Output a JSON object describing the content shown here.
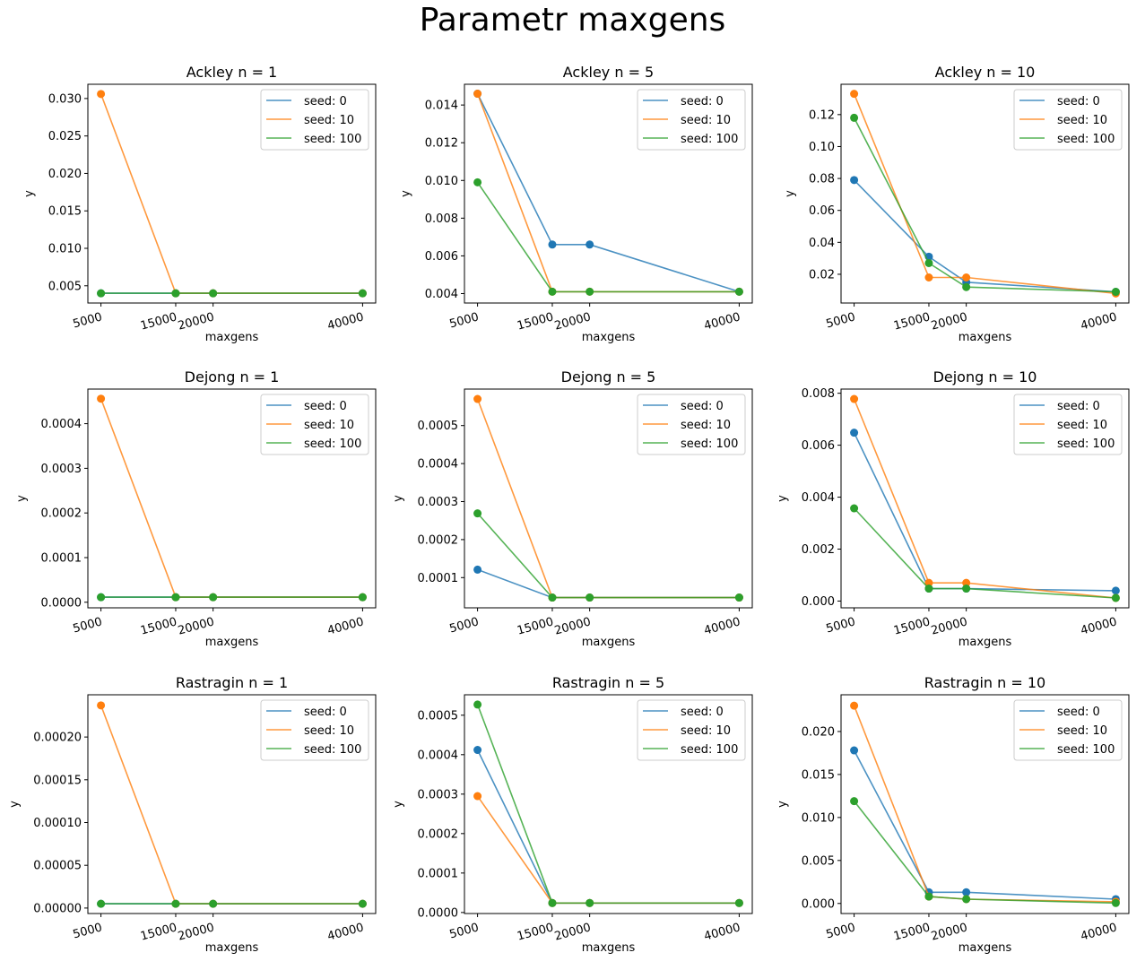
{
  "suptitle": "Parametr maxgens",
  "colors": {
    "seed_0": "#1f77b4",
    "seed_10": "#ff7f0e",
    "seed_100": "#2ca02c",
    "axes": "#000000",
    "legend_border": "#cccccc"
  },
  "chart_data": [
    {
      "type": "line",
      "title": "Ackley n = 1",
      "xlabel": "maxgens",
      "ylabel": "y",
      "legend": "top-right",
      "grid": false,
      "x": [
        5000,
        15000,
        20000,
        40000
      ],
      "yticks": [
        "0.005",
        "0.010",
        "0.015",
        "0.020",
        "0.025",
        "0.030"
      ],
      "ytick_values": [
        0.005,
        0.01,
        0.015,
        0.02,
        0.025,
        0.03
      ],
      "ylim": [
        0.0027,
        0.0319
      ],
      "series": [
        {
          "name": "seed: 0",
          "values": [
            0.004,
            0.004,
            0.004,
            0.004
          ]
        },
        {
          "name": "seed: 10",
          "values": [
            0.0306,
            0.004,
            0.004,
            0.004
          ]
        },
        {
          "name": "seed: 100",
          "values": [
            0.004,
            0.004,
            0.004,
            0.004
          ]
        }
      ]
    },
    {
      "type": "line",
      "title": "Ackley n = 5",
      "xlabel": "maxgens",
      "ylabel": "y",
      "legend": "top-right",
      "grid": false,
      "x": [
        5000,
        15000,
        20000,
        40000
      ],
      "yticks": [
        "0.004",
        "0.006",
        "0.008",
        "0.010",
        "0.012",
        "0.014"
      ],
      "ytick_values": [
        0.004,
        0.006,
        0.008,
        0.01,
        0.012,
        0.014
      ],
      "ylim": [
        0.0035,
        0.0151
      ],
      "series": [
        {
          "name": "seed: 0",
          "values": [
            0.0146,
            0.0066,
            0.0066,
            0.0041
          ]
        },
        {
          "name": "seed: 10",
          "values": [
            0.0146,
            0.0041,
            0.0041,
            0.0041
          ]
        },
        {
          "name": "seed: 100",
          "values": [
            0.0099,
            0.0041,
            0.0041,
            0.0041
          ]
        }
      ]
    },
    {
      "type": "line",
      "title": "Ackley n = 10",
      "xlabel": "maxgens",
      "ylabel": "y",
      "legend": "top-right",
      "grid": false,
      "x": [
        5000,
        15000,
        20000,
        40000
      ],
      "yticks": [
        "0.02",
        "0.04",
        "0.06",
        "0.08",
        "0.10",
        "0.12"
      ],
      "ytick_values": [
        0.02,
        0.04,
        0.06,
        0.08,
        0.1,
        0.12
      ],
      "ylim": [
        0.002,
        0.139
      ],
      "series": [
        {
          "name": "seed: 0",
          "values": [
            0.079,
            0.031,
            0.015,
            0.009
          ]
        },
        {
          "name": "seed: 10",
          "values": [
            0.133,
            0.018,
            0.018,
            0.008
          ]
        },
        {
          "name": "seed: 100",
          "values": [
            0.118,
            0.027,
            0.012,
            0.009
          ]
        }
      ]
    },
    {
      "type": "line",
      "title": "Dejong n = 1",
      "xlabel": "maxgens",
      "ylabel": "y",
      "legend": "top-right",
      "grid": false,
      "x": [
        5000,
        15000,
        20000,
        40000
      ],
      "yticks": [
        "0.0000",
        "0.0001",
        "0.0002",
        "0.0003",
        "0.0004"
      ],
      "ytick_values": [
        0.0,
        0.0001,
        0.0002,
        0.0003,
        0.0004
      ],
      "ylim": [
        -1.25e-05,
        0.0004775
      ],
      "series": [
        {
          "name": "seed: 0",
          "values": [
            1.13e-05,
            1.13e-05,
            1.13e-05,
            1.13e-05
          ]
        },
        {
          "name": "seed: 10",
          "values": [
            0.000456,
            1.13e-05,
            1.13e-05,
            1.13e-05
          ]
        },
        {
          "name": "seed: 100",
          "values": [
            1.13e-05,
            1.13e-05,
            1.13e-05,
            1.13e-05
          ]
        }
      ]
    },
    {
      "type": "line",
      "title": "Dejong n = 5",
      "xlabel": "maxgens",
      "ylabel": "y",
      "legend": "top-right",
      "grid": false,
      "x": [
        5000,
        15000,
        20000,
        40000
      ],
      "yticks": [
        "0.0001",
        "0.0002",
        "0.0003",
        "0.0004",
        "0.0005"
      ],
      "ytick_values": [
        0.0001,
        0.0002,
        0.0003,
        0.0004,
        0.0005
      ],
      "ylim": [
        2.05e-05,
        0.000596
      ],
      "series": [
        {
          "name": "seed: 0",
          "values": [
            0.000121,
            4.75e-05,
            4.75e-05,
            4.75e-05
          ]
        },
        {
          "name": "seed: 10",
          "values": [
            0.00057,
            4.75e-05,
            4.75e-05,
            4.75e-05
          ]
        },
        {
          "name": "seed: 100",
          "values": [
            0.000269,
            4.75e-05,
            4.75e-05,
            4.75e-05
          ]
        }
      ]
    },
    {
      "type": "line",
      "title": "Dejong n = 10",
      "xlabel": "maxgens",
      "ylabel": "y",
      "legend": "top-right",
      "grid": false,
      "x": [
        5000,
        15000,
        20000,
        40000
      ],
      "yticks": [
        "0.000",
        "0.002",
        "0.004",
        "0.006",
        "0.008"
      ],
      "ytick_values": [
        0.0,
        0.002,
        0.004,
        0.006,
        0.008
      ],
      "ylim": [
        -0.00026,
        0.00816
      ],
      "series": [
        {
          "name": "seed: 0",
          "values": [
            0.00648,
            0.00048,
            0.00048,
            0.0004
          ]
        },
        {
          "name": "seed: 10",
          "values": [
            0.00778,
            0.0007,
            0.0007,
            0.00012
          ]
        },
        {
          "name": "seed: 100",
          "values": [
            0.00357,
            0.00048,
            0.00048,
            0.00012
          ]
        }
      ]
    },
    {
      "type": "line",
      "title": "Rastragin n = 1",
      "xlabel": "maxgens",
      "ylabel": "y",
      "legend": "top-right",
      "grid": false,
      "x": [
        5000,
        15000,
        20000,
        40000
      ],
      "yticks": [
        "0.00000",
        "0.00005",
        "0.00010",
        "0.00015",
        "0.00020"
      ],
      "ytick_values": [
        0.0,
        5e-05,
        0.0001,
        0.00015,
        0.0002
      ],
      "ylim": [
        -6.4e-06,
        0.0002494
      ],
      "series": [
        {
          "name": "seed: 0",
          "values": [
            5e-06,
            5e-06,
            5e-06,
            5e-06
          ]
        },
        {
          "name": "seed: 10",
          "values": [
            0.000237,
            5e-06,
            5e-06,
            5e-06
          ]
        },
        {
          "name": "seed: 100",
          "values": [
            5e-06,
            5e-06,
            5e-06,
            5e-06
          ]
        }
      ]
    },
    {
      "type": "line",
      "title": "Rastragin n = 5",
      "xlabel": "maxgens",
      "ylabel": "y",
      "legend": "top-right",
      "grid": false,
      "x": [
        5000,
        15000,
        20000,
        40000
      ],
      "yticks": [
        "0.0000",
        "0.0001",
        "0.0002",
        "0.0003",
        "0.0004",
        "0.0005"
      ],
      "ytick_values": [
        0.0,
        0.0001,
        0.0002,
        0.0003,
        0.0004,
        0.0005
      ],
      "ylim": [
        -2.6e-06,
        0.0005518
      ],
      "series": [
        {
          "name": "seed: 0",
          "values": [
            0.000412,
            2.4e-05,
            2.4e-05,
            2.4e-05
          ]
        },
        {
          "name": "seed: 10",
          "values": [
            0.000295,
            2.4e-05,
            2.4e-05,
            2.4e-05
          ]
        },
        {
          "name": "seed: 100",
          "values": [
            0.000527,
            2.4e-05,
            2.4e-05,
            2.4e-05
          ]
        }
      ]
    },
    {
      "type": "line",
      "title": "Rastragin n = 10",
      "xlabel": "maxgens",
      "ylabel": "y",
      "legend": "top-right",
      "grid": false,
      "x": [
        5000,
        15000,
        20000,
        40000
      ],
      "yticks": [
        "0.000",
        "0.005",
        "0.010",
        "0.015",
        "0.020"
      ],
      "ytick_values": [
        0.0,
        0.005,
        0.01,
        0.015,
        0.02
      ],
      "ylim": [
        -0.00117,
        0.02427
      ],
      "series": [
        {
          "name": "seed: 0",
          "values": [
            0.0178,
            0.0013,
            0.0013,
            0.0005
          ]
        },
        {
          "name": "seed: 10",
          "values": [
            0.023,
            0.0008,
            0.0005,
            0.0002
          ]
        },
        {
          "name": "seed: 100",
          "values": [
            0.0119,
            0.0008,
            0.0005,
            5e-05
          ]
        }
      ]
    }
  ]
}
